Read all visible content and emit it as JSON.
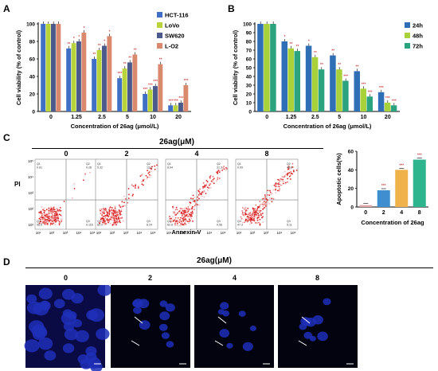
{
  "panels": {
    "a": "A",
    "b": "B",
    "c": "C",
    "d": "D"
  },
  "colors": {
    "hct116": "#3f6fc6",
    "lovo": "#b9d33a",
    "sw620": "#4b5a8a",
    "lo2": "#d98a6e",
    "h24": "#2f6fb6",
    "h48": "#a9d13a",
    "h72": "#2aa37e",
    "bar_c0": "#e0a5a5",
    "bar_c2": "#3f8fd0",
    "bar_c4": "#f0b24a",
    "bar_c8": "#2fb58d"
  },
  "chart_data": [
    {
      "type": "bar",
      "panel": "A",
      "ylabel": "Cell viability (% of control)",
      "xlabel": "Concentration of 26ag (μmol/L)",
      "categories": [
        "0",
        "1.25",
        "2.5",
        "5",
        "10",
        "20"
      ],
      "ylim": [
        0,
        100
      ],
      "yticks": [
        "0",
        "20",
        "40",
        "60",
        "80",
        "100"
      ],
      "series": [
        {
          "name": "HCT-116",
          "values": [
            100,
            72,
            60,
            38,
            20,
            7
          ]
        },
        {
          "name": "LoVo",
          "values": [
            100,
            78,
            70,
            49,
            25,
            7
          ]
        },
        {
          "name": "SW620",
          "values": [
            100,
            80,
            75,
            56,
            29,
            10
          ]
        },
        {
          "name": "L-O2",
          "values": [
            100,
            90,
            86,
            65,
            54,
            30
          ]
        }
      ],
      "sig_labels": [
        "*",
        "**",
        "***"
      ]
    },
    {
      "type": "bar",
      "panel": "B",
      "ylabel": "Cell viability (% of control)",
      "xlabel": "Concentration of 26ag (μmol/L)",
      "categories": [
        "0",
        "1.25",
        "2.5",
        "5",
        "10",
        "20"
      ],
      "ylim": [
        0,
        100
      ],
      "yticks": [
        "0",
        "10",
        "20",
        "30",
        "40",
        "50",
        "60",
        "70",
        "80",
        "90",
        "100"
      ],
      "series": [
        {
          "name": "24h",
          "values": [
            100,
            80,
            75,
            64,
            46,
            22
          ]
        },
        {
          "name": "48h",
          "values": [
            100,
            72,
            62,
            48,
            26,
            10
          ]
        },
        {
          "name": "72h",
          "values": [
            100,
            69,
            48,
            35,
            17,
            7
          ]
        }
      ],
      "sig_labels": [
        "*",
        "**",
        "***"
      ]
    },
    {
      "type": "bar",
      "panel": "C",
      "ylabel": "Apoptotic cells(%)",
      "xlabel": "Concentration of 26ag",
      "categories": [
        "0",
        "2",
        "4",
        "8"
      ],
      "ylim": [
        0,
        60
      ],
      "yticks": [
        "0",
        "20",
        "40",
        "60"
      ],
      "values": [
        2,
        18,
        40,
        51
      ],
      "sig_labels": [
        "***"
      ]
    }
  ],
  "flow": {
    "group_title": "26ag(μM)",
    "xaxis": "Annexin-V",
    "yaxis": "PI",
    "ticks": [
      "10¹",
      "10²",
      "10³",
      "10⁴",
      "10⁵"
    ],
    "plots": [
      {
        "label": "0",
        "q1": "Q1\n0.61",
        "q2": "Q2\n0.28",
        "q3": "Q3\n0.116",
        "q4": "Q4\n98.6",
        "density": 0.04
      },
      {
        "label": "2",
        "q1": "Q1\n5.32",
        "q2": "Q2\n12.2",
        "q3": "Q3\n6.24",
        "q4": "Q4\n82.0",
        "density": 0.25
      },
      {
        "label": "4",
        "q1": "Q1\n8.94",
        "q2": "Q2\n31.3",
        "q3": "Q3\n0.56",
        "q4": "Q4\n62.8",
        "density": 0.45
      },
      {
        "label": "8",
        "q1": "Q1\n0.09",
        "q2": "Q2\n46.8",
        "q3": "Q3\n5.11",
        "q4": "Q4\n47.3",
        "density": 0.65
      }
    ]
  },
  "micro": {
    "group_title": "26ag(μM)",
    "labels": [
      "0",
      "2",
      "4",
      "8"
    ]
  }
}
